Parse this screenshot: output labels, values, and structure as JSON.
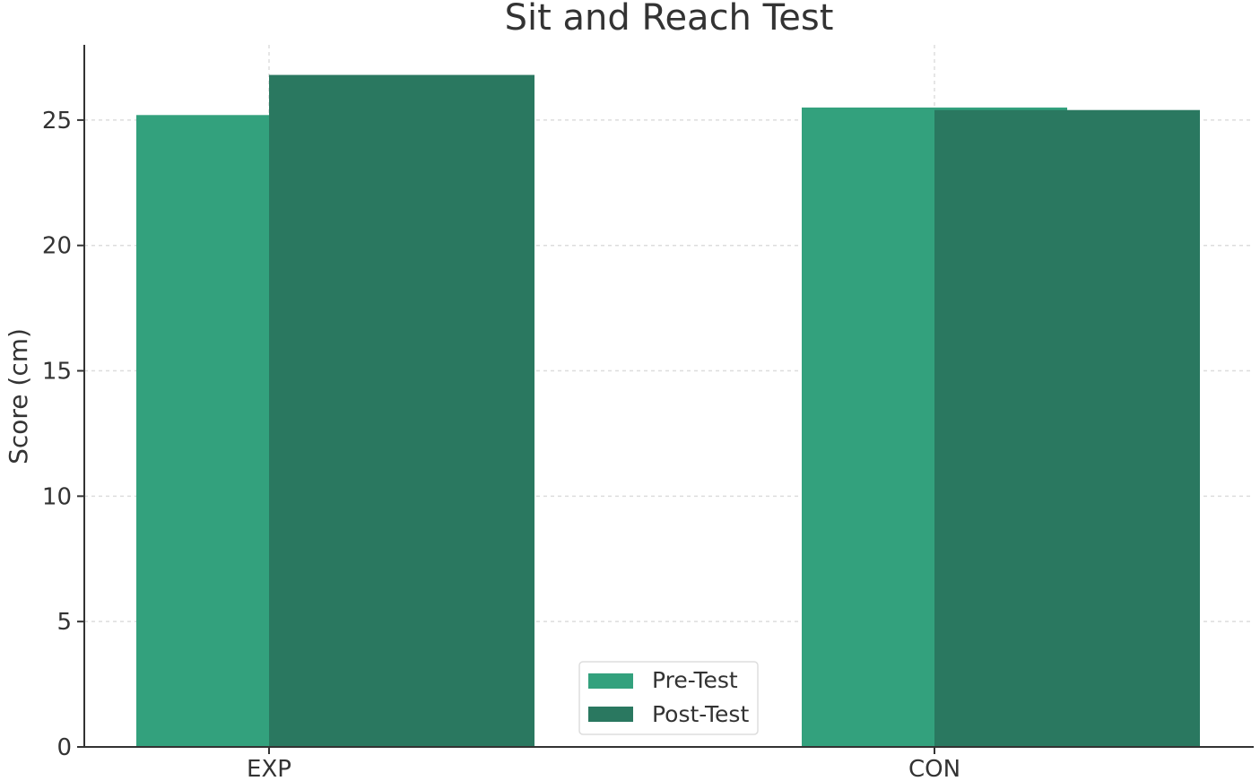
{
  "chart_data": {
    "type": "bar",
    "title": "Sit and Reach Test",
    "xlabel": "",
    "ylabel": "Score (cm)",
    "categories": [
      "EXP",
      "CON"
    ],
    "series": [
      {
        "name": "Pre-Test",
        "values": [
          25.2,
          25.5
        ],
        "color": "#33a17d"
      },
      {
        "name": "Post-Test",
        "values": [
          26.8,
          25.4
        ],
        "color": "#2a7860"
      }
    ],
    "ylim": [
      0,
      28
    ],
    "yticks": [
      "0",
      "5",
      "10",
      "15",
      "20",
      "25"
    ],
    "grid": true,
    "legend_position": "bottom-center"
  }
}
